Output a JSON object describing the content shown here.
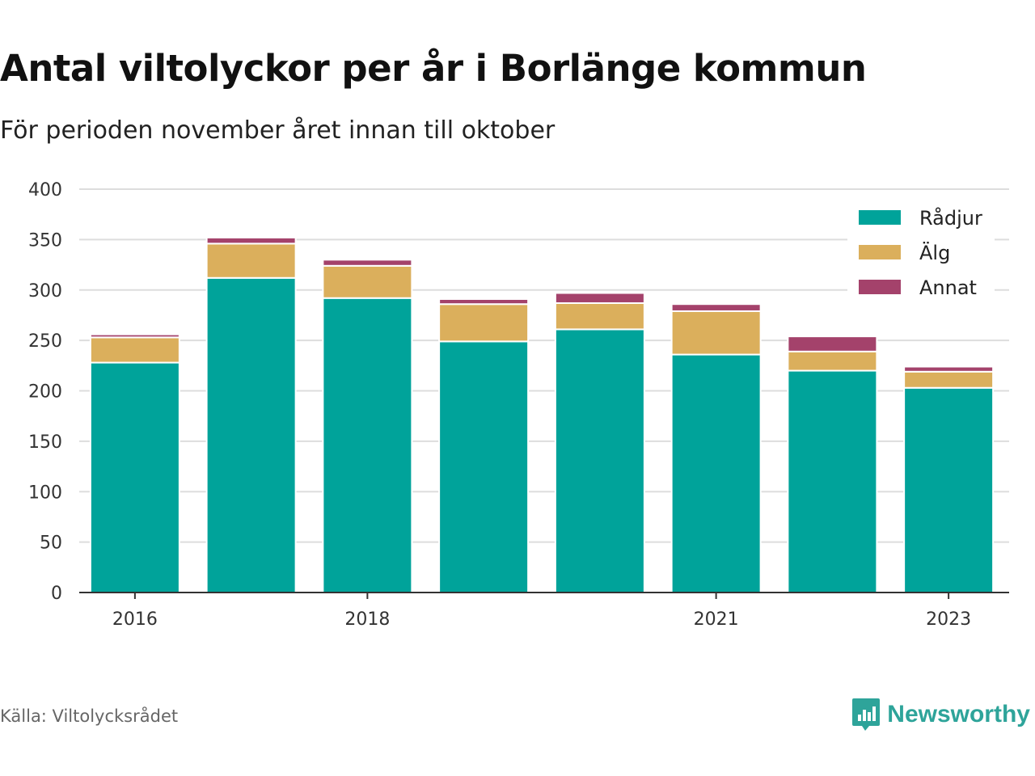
{
  "header": {
    "title": "Antal viltolyckor per år i Borlänge kommun",
    "subtitle": "För perioden november året innan till oktober"
  },
  "footer": {
    "source": "Källa: Viltolycksrådet",
    "brand": "Newsworthy",
    "brand_color": "#2ea49a"
  },
  "chart_data": {
    "type": "bar",
    "stacked": true,
    "categories": [
      "2016",
      "2017",
      "2018",
      "2019",
      "2020",
      "2021",
      "2022",
      "2023"
    ],
    "tick_labels": [
      "2016",
      "",
      "2018",
      "",
      "",
      "2021",
      "",
      "2023"
    ],
    "series": [
      {
        "name": "Rådjur",
        "color": "#00a39a",
        "values": [
          228,
          312,
          292,
          249,
          261,
          236,
          220,
          203
        ]
      },
      {
        "name": "Älg",
        "color": "#dbaf5c",
        "values": [
          25,
          34,
          32,
          37,
          26,
          43,
          19,
          16
        ]
      },
      {
        "name": "Annat",
        "color": "#a4426b",
        "values": [
          3,
          6,
          6,
          5,
          10,
          7,
          15,
          5
        ]
      }
    ],
    "ylim": [
      0,
      400
    ],
    "yticks": [
      0,
      50,
      100,
      150,
      200,
      250,
      300,
      350,
      400
    ],
    "grid": true,
    "legend_position": "top-right"
  }
}
